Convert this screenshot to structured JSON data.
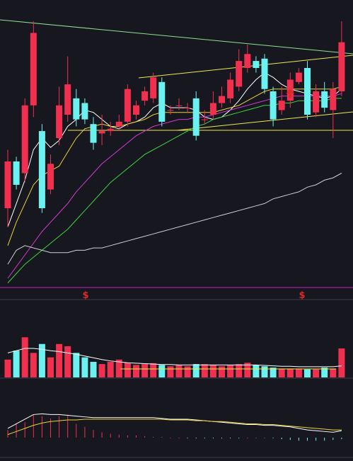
{
  "colors": {
    "background": "#17181f",
    "up": "#f0304e",
    "down": "#6cf1f1",
    "ma5": "#ffffff",
    "ma10": "#e8d23a",
    "ma20": "#d23ad2",
    "ma30": "#3fd23f",
    "ma60": "#cfcfcf",
    "trend_green": "#8fe08f",
    "channel_yellow": "#f0e850",
    "divider": "#3a3c48",
    "magenta_line": "#c81ec8",
    "vol_ma": "#f0e850",
    "macd_dif": "#ffffff",
    "macd_dea": "#e8d23a"
  },
  "markers": [
    {
      "name": "dollar-marker-1",
      "text": "$",
      "index": 8
    },
    {
      "name": "dollar-marker-2",
      "text": "$",
      "index": 35
    }
  ],
  "arrow_index": 33,
  "chart_data": [
    {
      "type": "candlestick",
      "panel": "price",
      "title": "",
      "xlabel": "",
      "ylabel": "",
      "ylim": [
        0,
        100
      ],
      "grid": false,
      "candles": [
        [
          20,
          40,
          45,
          12
        ],
        [
          40,
          30,
          42,
          28
        ],
        [
          35,
          64,
          67,
          31
        ],
        [
          64,
          95,
          100,
          59
        ],
        [
          53,
          20,
          56,
          18
        ],
        [
          28,
          39,
          43,
          26
        ],
        [
          50,
          64,
          72,
          47
        ],
        [
          60,
          73,
          85,
          57
        ],
        [
          67,
          58,
          71,
          55
        ],
        [
          65,
          58,
          67,
          56
        ],
        [
          56,
          48,
          59,
          45
        ],
        [
          52,
          53,
          60,
          47
        ],
        [
          53,
          54,
          57,
          51
        ],
        [
          55,
          57,
          60,
          53
        ],
        [
          57,
          71,
          73,
          55
        ],
        [
          60,
          64,
          66,
          58
        ],
        [
          66,
          70,
          72,
          64
        ],
        [
          67,
          76,
          78,
          65
        ],
        [
          74,
          57,
          76,
          55
        ],
        [
          62,
          62,
          64,
          60
        ],
        [
          64,
          64,
          67,
          62
        ],
        [
          63,
          63,
          65,
          61
        ],
        [
          67,
          51,
          70,
          49
        ],
        [
          58,
          58,
          62,
          56
        ],
        [
          60,
          65,
          70,
          58
        ],
        [
          65,
          68,
          72,
          63
        ],
        [
          67,
          75,
          78,
          65
        ],
        [
          72,
          83,
          88,
          70
        ],
        [
          80,
          86,
          90,
          78
        ],
        [
          83,
          80,
          85,
          78
        ],
        [
          84,
          71,
          86,
          69
        ],
        [
          70,
          58,
          72,
          55
        ],
        [
          62,
          66,
          72,
          60
        ],
        [
          66,
          75,
          78,
          63
        ],
        [
          74,
          78,
          80,
          73
        ],
        [
          80,
          60,
          83,
          58
        ],
        [
          61,
          70,
          73,
          59
        ],
        [
          70,
          63,
          74,
          61
        ],
        [
          62,
          71,
          74,
          50
        ],
        [
          70,
          91,
          100,
          68
        ]
      ],
      "ma": [
        {
          "period": 5,
          "values": [
            12,
            22,
            32,
            45,
            50,
            46,
            49,
            55,
            58,
            62,
            61,
            58,
            55,
            54,
            56,
            57,
            59,
            63,
            65,
            63,
            63,
            63,
            62,
            59,
            58,
            59,
            62,
            66,
            71,
            75,
            78,
            76,
            73,
            71,
            70,
            69,
            68,
            67,
            68,
            71
          ]
        },
        {
          "period": 10,
          "values": [
            4,
            14,
            22,
            30,
            34,
            36,
            38,
            44,
            50,
            54,
            55,
            56,
            55,
            55,
            56,
            57,
            58,
            60,
            61,
            61,
            61,
            61,
            61,
            61,
            61,
            62,
            63,
            64,
            66,
            68,
            70,
            71,
            71,
            71,
            71,
            71,
            71,
            71,
            71,
            72
          ]
        },
        {
          "period": 20,
          "values": [
            -10,
            -5,
            0,
            5,
            10,
            14,
            18,
            22,
            27,
            31,
            35,
            39,
            42,
            45,
            48,
            51,
            53,
            55,
            56,
            57,
            58,
            58,
            59,
            59,
            60,
            61,
            62,
            63,
            64,
            65,
            66,
            67,
            68,
            68,
            68,
            68,
            68,
            68,
            68,
            69
          ]
        },
        {
          "period": 30,
          "values": [
            -12,
            -8,
            -4,
            -1,
            2,
            5,
            8,
            11,
            15,
            19,
            23,
            27,
            31,
            34,
            37,
            40,
            43,
            45,
            47,
            49,
            51,
            53,
            55,
            56,
            58,
            59,
            60,
            61,
            62,
            63,
            64,
            64,
            65,
            65,
            66,
            66,
            66,
            66,
            67,
            67
          ]
        },
        {
          "period": 60,
          "values": [
            -4,
            2,
            4,
            3,
            2,
            1,
            1,
            1,
            2,
            2,
            3,
            3,
            4,
            5,
            6,
            7,
            8,
            9,
            10,
            11,
            12,
            13,
            14,
            15,
            16,
            17,
            18,
            19,
            20,
            21,
            22,
            24,
            25,
            26,
            27,
            29,
            30,
            32,
            33,
            35
          ]
        }
      ]
    },
    {
      "type": "bar",
      "panel": "volume",
      "title": "",
      "ylim": [
        0,
        100
      ],
      "values": [
        40,
        60,
        90,
        55,
        75,
        45,
        75,
        70,
        55,
        45,
        35,
        30,
        35,
        40,
        33,
        28,
        30,
        32,
        28,
        25,
        28,
        25,
        30,
        30,
        28,
        25,
        28,
        30,
        33,
        28,
        25,
        22,
        20,
        20,
        20,
        18,
        18,
        22,
        20,
        65
      ],
      "ma": [
        55,
        60,
        65,
        65,
        63,
        60,
        58,
        55,
        52,
        48,
        44,
        40,
        37,
        35,
        33,
        32,
        31,
        30,
        29,
        29,
        28,
        28,
        28,
        28,
        28,
        28,
        28,
        28,
        28,
        28,
        27,
        26,
        25,
        25,
        24,
        24,
        24,
        24,
        24,
        26
      ]
    },
    {
      "type": "bar",
      "panel": "macd",
      "title": "",
      "ylim": [
        -10,
        35
      ],
      "hist": [
        10,
        18,
        20,
        30,
        28,
        25,
        28,
        30,
        18,
        14,
        10,
        7,
        5,
        4,
        3,
        3,
        2,
        1,
        1,
        0,
        0,
        -1,
        -1,
        -1,
        -1,
        -1,
        -1,
        -1,
        0,
        0,
        0,
        -1,
        -2,
        -3,
        -4,
        -4,
        -4,
        -4,
        -3,
        -2
      ],
      "dif": [
        12,
        18,
        24,
        30,
        31,
        30,
        30,
        29,
        28,
        27,
        26,
        26,
        26,
        26,
        26,
        26,
        26,
        26,
        25,
        24,
        24,
        24,
        23,
        22,
        21,
        20,
        19,
        18,
        17,
        17,
        16,
        16,
        15,
        14,
        12,
        10,
        9,
        8,
        7,
        9
      ],
      "dea": [
        4,
        8,
        12,
        16,
        19,
        21,
        22,
        23,
        23,
        24,
        24,
        24,
        24,
        24,
        24,
        24,
        24,
        24,
        24,
        23,
        23,
        23,
        22,
        22,
        21,
        21,
        20,
        19,
        18,
        18,
        17,
        17,
        16,
        15,
        14,
        13,
        12,
        11,
        10,
        10
      ]
    }
  ]
}
